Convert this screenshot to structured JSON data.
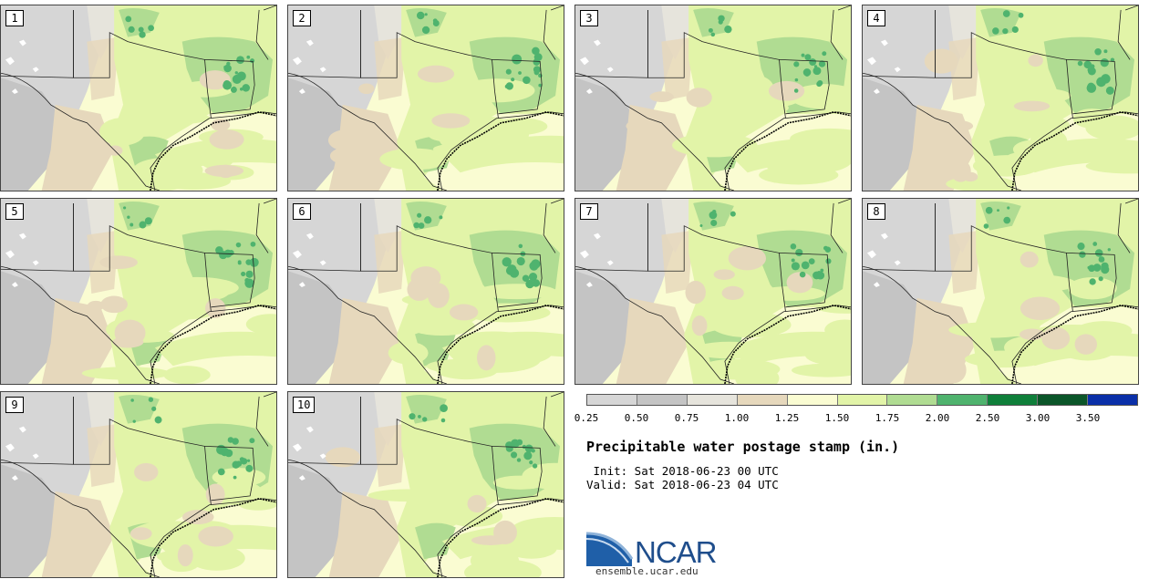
{
  "stamps": [
    {
      "label": "1"
    },
    {
      "label": "2"
    },
    {
      "label": "3"
    },
    {
      "label": "4"
    },
    {
      "label": "5"
    },
    {
      "label": "6"
    },
    {
      "label": "7"
    },
    {
      "label": "8"
    },
    {
      "label": "9"
    },
    {
      "label": "10"
    }
  ],
  "colorbar": {
    "colors": [
      "#d6d6d6",
      "#c4c4c4",
      "#e6e4dc",
      "#e6d8bc",
      "#fafcd2",
      "#e2f4a8",
      "#b0dc92",
      "#4fb36e",
      "#0f7f3a",
      "#0b5629",
      "#0a2fa8"
    ],
    "ticks": [
      "0.25",
      "0.50",
      "0.75",
      "1.00",
      "1.25",
      "1.50",
      "1.75",
      "2.00",
      "2.50",
      "3.00",
      "3.50"
    ]
  },
  "title": "Precipitable water postage stamp (in.)",
  "init": " Init: Sat 2018-06-23 00 UTC",
  "valid": "Valid: Sat 2018-06-23 04 UTC",
  "logo": {
    "text": "NCAR",
    "url": "ensemble.ucar.edu"
  }
}
